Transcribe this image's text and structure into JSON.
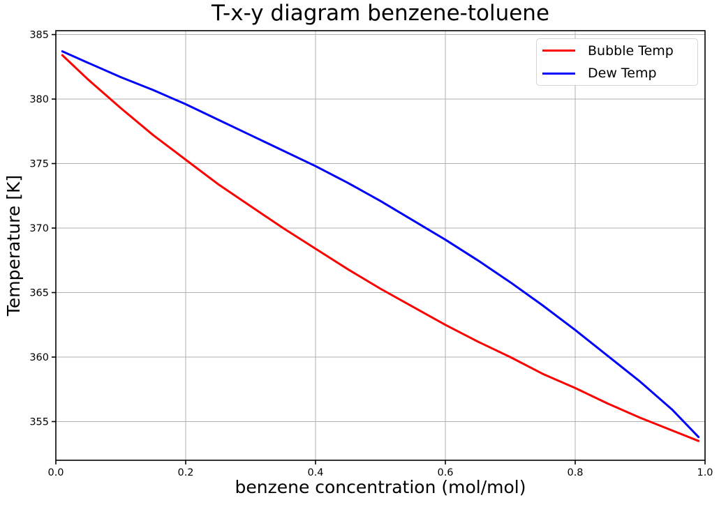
{
  "figure": {
    "background": "#ffffff",
    "text_color": "#000000",
    "spine_color": "#000000"
  },
  "chart_data": {
    "type": "line",
    "title": "T-x-y diagram benzene-toluene",
    "xlabel": "benzene concentration (mol/mol)",
    "ylabel": "Temperature [K]",
    "xlim": [
      0.0,
      1.0
    ],
    "ylim": [
      352.0,
      385.3
    ],
    "grid": true,
    "grid_color": "#b0b0b0",
    "legend_position": "upper right",
    "x_tick_values": [
      0.0,
      0.2,
      0.4,
      0.6,
      0.8,
      1.0
    ],
    "x_tick_labels": [
      "0.0",
      "0.2",
      "0.4",
      "0.6",
      "0.8",
      "1.0"
    ],
    "y_tick_values": [
      355,
      360,
      365,
      370,
      375,
      380,
      385
    ],
    "y_tick_labels": [
      "355",
      "360",
      "365",
      "370",
      "375",
      "380",
      "385"
    ],
    "x": [
      0.01,
      0.05,
      0.1,
      0.15,
      0.2,
      0.25,
      0.3,
      0.35,
      0.4,
      0.45,
      0.5,
      0.55,
      0.6,
      0.65,
      0.7,
      0.75,
      0.8,
      0.85,
      0.9,
      0.95,
      0.99
    ],
    "series": [
      {
        "name": "Bubble Temp",
        "color": "#ff0000",
        "values": [
          383.4,
          381.5,
          379.3,
          377.2,
          375.3,
          373.4,
          371.7,
          370.0,
          368.4,
          366.8,
          365.3,
          363.9,
          362.5,
          361.2,
          360.0,
          358.7,
          357.6,
          356.4,
          355.3,
          354.3,
          353.5
        ]
      },
      {
        "name": "Dew Temp",
        "color": "#0000ff",
        "values": [
          383.7,
          382.8,
          381.7,
          380.7,
          379.6,
          378.4,
          377.2,
          376.0,
          374.8,
          373.5,
          372.1,
          370.6,
          369.1,
          367.5,
          365.8,
          364.0,
          362.1,
          360.1,
          358.1,
          355.9,
          353.8
        ]
      }
    ]
  }
}
